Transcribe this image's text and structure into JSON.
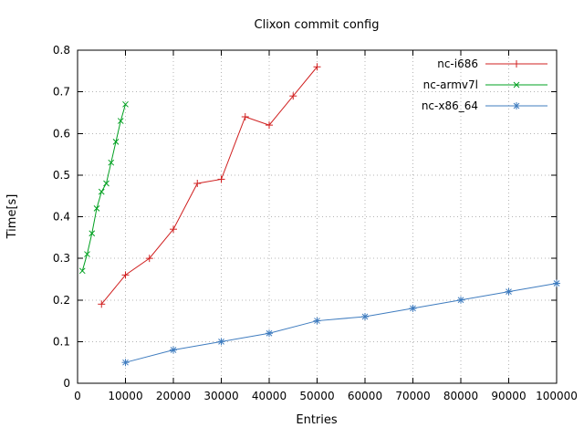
{
  "chart_data": {
    "type": "line",
    "title": "Clixon commit config",
    "xlabel": "Entries",
    "ylabel": "Time[s]",
    "xlim": [
      0,
      100000
    ],
    "ylim": [
      0,
      0.8
    ],
    "x_ticks": [
      0,
      10000,
      20000,
      30000,
      40000,
      50000,
      60000,
      70000,
      80000,
      90000,
      100000
    ],
    "y_ticks": [
      0,
      0.1,
      0.2,
      0.3,
      0.4,
      0.5,
      0.6,
      0.7,
      0.8
    ],
    "grid": true,
    "legend_position": "top-right-inside",
    "series": [
      {
        "name": "nc-i686",
        "color": "#d02020",
        "marker": "plus",
        "x": [
          5000,
          10000,
          15000,
          20000,
          25000,
          30000,
          35000,
          40000,
          45000,
          50000
        ],
        "y": [
          0.19,
          0.26,
          0.3,
          0.37,
          0.48,
          0.49,
          0.64,
          0.62,
          0.69,
          0.76
        ]
      },
      {
        "name": "nc-armv7l",
        "color": "#00a020",
        "marker": "cross",
        "x": [
          1000,
          2000,
          3000,
          4000,
          5000,
          6000,
          7000,
          8000,
          9000,
          10000
        ],
        "y": [
          0.27,
          0.31,
          0.36,
          0.42,
          0.46,
          0.48,
          0.53,
          0.58,
          0.63,
          0.67
        ]
      },
      {
        "name": "nc-x86_64",
        "color": "#3f7cbf",
        "marker": "asterisk",
        "x": [
          10000,
          20000,
          30000,
          40000,
          50000,
          60000,
          70000,
          80000,
          90000,
          100000
        ],
        "y": [
          0.05,
          0.08,
          0.1,
          0.12,
          0.15,
          0.16,
          0.18,
          0.2,
          0.22,
          0.24
        ]
      }
    ]
  }
}
